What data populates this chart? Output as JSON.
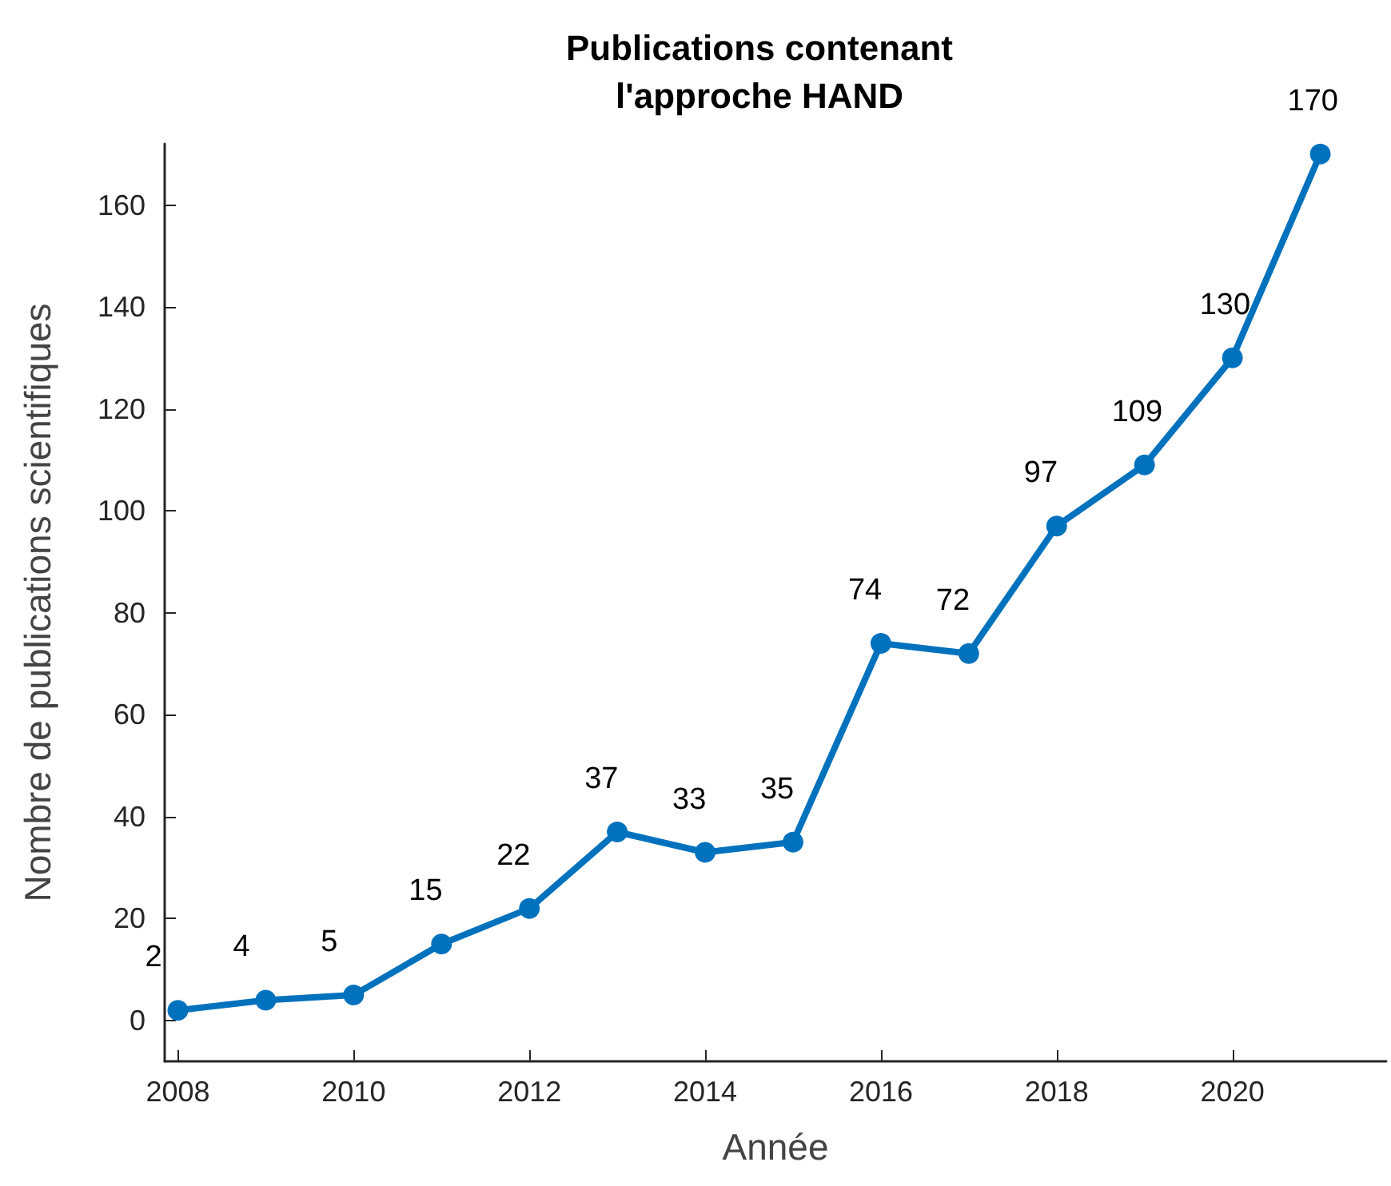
{
  "chart_data": {
    "type": "line",
    "title": "Publications contenant\nl'approche HAND",
    "xlabel": "Année",
    "ylabel": "Nombre de publications scientifiques",
    "x": [
      2008,
      2009,
      2010,
      2011,
      2012,
      2013,
      2014,
      2015,
      2016,
      2017,
      2018,
      2019,
      2020,
      2021
    ],
    "series": [
      {
        "color": "#0072bd",
        "values": [
          2,
          4,
          5,
          15,
          22,
          37,
          33,
          35,
          74,
          72,
          97,
          109,
          130,
          170
        ]
      }
    ],
    "xlim": [
      2007.85,
      2021.75
    ],
    "xticks": [
      2008,
      2010,
      2012,
      2014,
      2016,
      2018,
      2020
    ],
    "ylim": [
      -8,
      172
    ],
    "yticks": [
      0,
      20,
      40,
      60,
      80,
      100,
      120,
      140,
      160
    ],
    "grid": false,
    "marker": "circle",
    "line_style": "solid",
    "data_labels": true
  }
}
